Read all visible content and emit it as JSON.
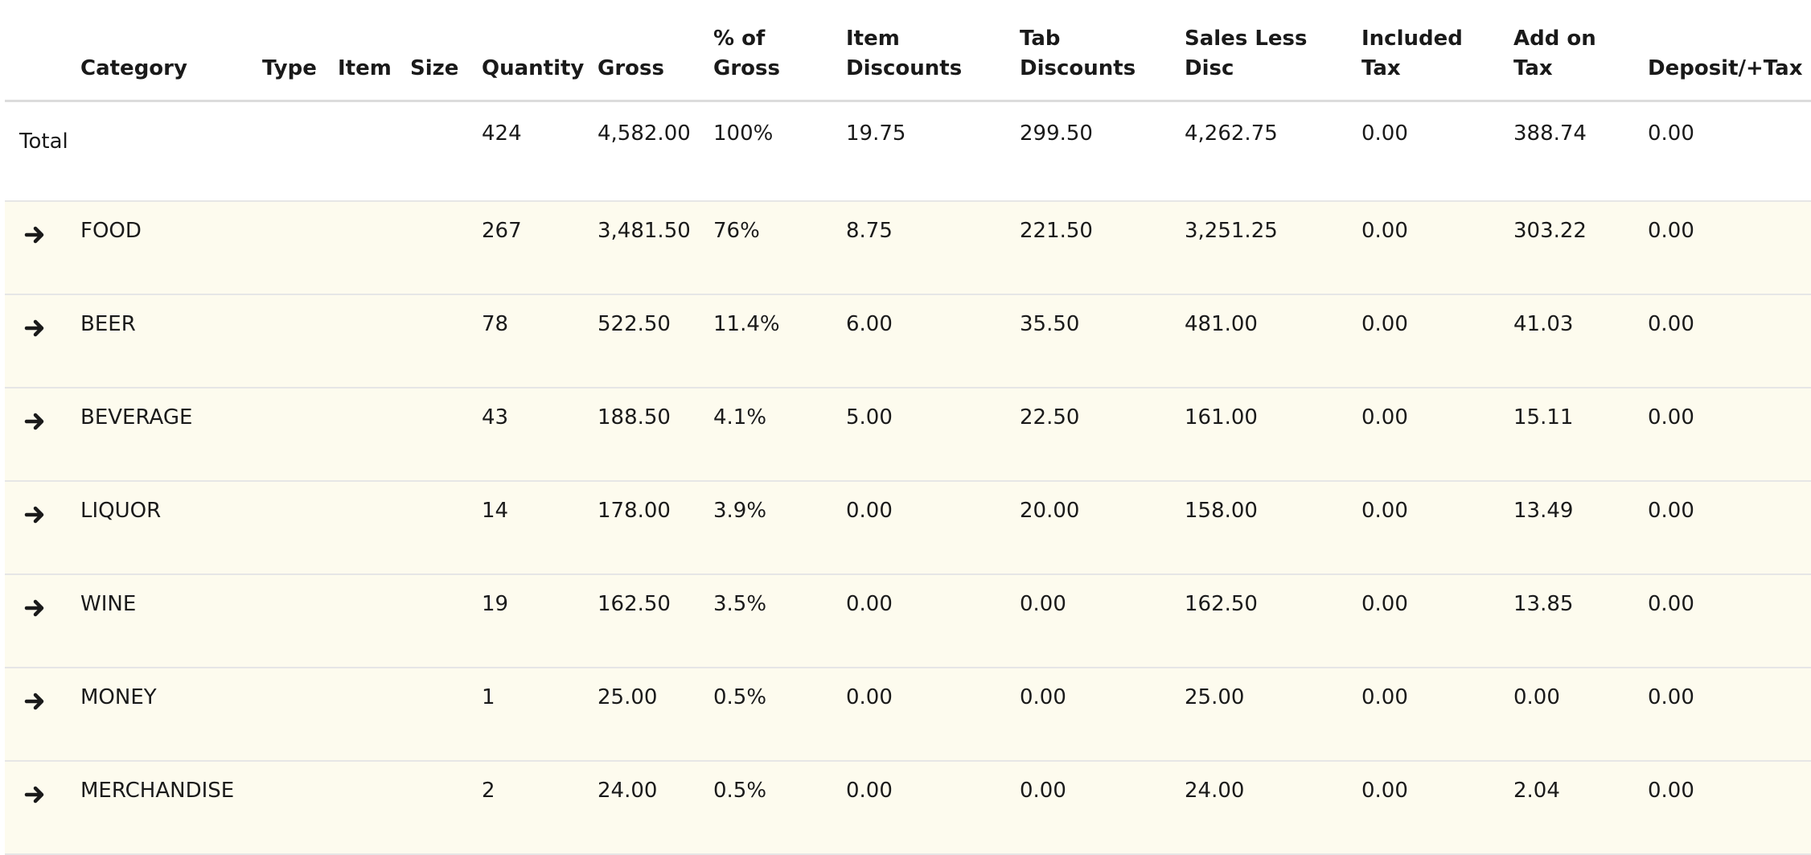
{
  "columns": {
    "category": "Category",
    "type": "Type",
    "item": "Item",
    "size": "Size",
    "quantity": "Quantity",
    "gross": "Gross",
    "pct_gross_1": "% of",
    "pct_gross_2": "Gross",
    "item_discounts_1": "Item",
    "item_discounts_2": "Discounts",
    "tab_discounts_1": "Tab",
    "tab_discounts_2": "Discounts",
    "sales_less_disc_1": "Sales Less",
    "sales_less_disc_2": "Disc",
    "included_tax_1": "Included",
    "included_tax_2": "Tax",
    "add_on_tax_1": "Add on",
    "add_on_tax_2": "Tax",
    "deposit_tax": "Deposit/+Tax"
  },
  "total": {
    "label": "Total",
    "quantity": "424",
    "gross": "4,582.00",
    "pct_gross": "100%",
    "item_discounts": "19.75",
    "tab_discounts": "299.50",
    "sales_less_disc": "4,262.75",
    "included_tax": "0.00",
    "add_on_tax": "388.74",
    "deposit_tax": "0.00"
  },
  "rows": [
    {
      "category": "FOOD",
      "quantity": "267",
      "gross": "3,481.50",
      "pct_gross": "76%",
      "item_discounts": "8.75",
      "tab_discounts": "221.50",
      "sales_less_disc": "3,251.25",
      "included_tax": "0.00",
      "add_on_tax": "303.22",
      "deposit_tax": "0.00"
    },
    {
      "category": "BEER",
      "quantity": "78",
      "gross": "522.50",
      "pct_gross": "11.4%",
      "item_discounts": "6.00",
      "tab_discounts": "35.50",
      "sales_less_disc": "481.00",
      "included_tax": "0.00",
      "add_on_tax": "41.03",
      "deposit_tax": "0.00"
    },
    {
      "category": "BEVERAGE",
      "quantity": "43",
      "gross": "188.50",
      "pct_gross": "4.1%",
      "item_discounts": "5.00",
      "tab_discounts": "22.50",
      "sales_less_disc": "161.00",
      "included_tax": "0.00",
      "add_on_tax": "15.11",
      "deposit_tax": "0.00"
    },
    {
      "category": "LIQUOR",
      "quantity": "14",
      "gross": "178.00",
      "pct_gross": "3.9%",
      "item_discounts": "0.00",
      "tab_discounts": "20.00",
      "sales_less_disc": "158.00",
      "included_tax": "0.00",
      "add_on_tax": "13.49",
      "deposit_tax": "0.00"
    },
    {
      "category": "WINE",
      "quantity": "19",
      "gross": "162.50",
      "pct_gross": "3.5%",
      "item_discounts": "0.00",
      "tab_discounts": "0.00",
      "sales_less_disc": "162.50",
      "included_tax": "0.00",
      "add_on_tax": "13.85",
      "deposit_tax": "0.00"
    },
    {
      "category": "MONEY",
      "quantity": "1",
      "gross": "25.00",
      "pct_gross": "0.5%",
      "item_discounts": "0.00",
      "tab_discounts": "0.00",
      "sales_less_disc": "25.00",
      "included_tax": "0.00",
      "add_on_tax": "0.00",
      "deposit_tax": "0.00"
    },
    {
      "category": "MERCHANDISE",
      "quantity": "2",
      "gross": "24.00",
      "pct_gross": "0.5%",
      "item_discounts": "0.00",
      "tab_discounts": "0.00",
      "sales_less_disc": "24.00",
      "included_tax": "0.00",
      "add_on_tax": "2.04",
      "deposit_tax": "0.00"
    }
  ],
  "icons": {
    "row_expand": "arrow-right-icon"
  },
  "colors": {
    "row_highlight": "#fdfbee",
    "header_rule": "#dcdcdc",
    "text": "#1a1a1a"
  }
}
